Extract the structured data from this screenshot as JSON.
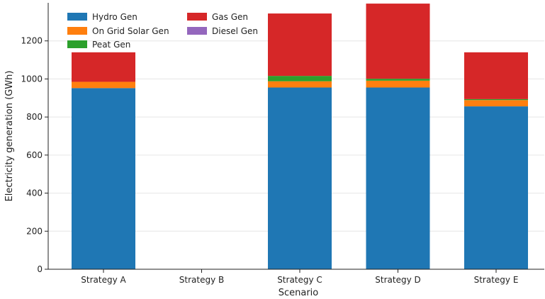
{
  "chart_data": {
    "type": "bar",
    "stacked": true,
    "title": "",
    "xlabel": "Scenario",
    "ylabel": "Electricity generation (GWh)",
    "ylim": [
      0,
      1400
    ],
    "yticks": [
      0,
      200,
      400,
      600,
      800,
      1000,
      1200
    ],
    "grid": true,
    "legend_position": "top-left",
    "categories": [
      "Strategy A",
      "Strategy B",
      "Strategy C",
      "Strategy D",
      "Strategy E"
    ],
    "series": [
      {
        "name": "Hydro Gen",
        "color": "#1f77b4",
        "values": [
          952,
          0,
          955,
          955,
          856
        ]
      },
      {
        "name": "On Grid Solar Gen",
        "color": "#ff7f0e",
        "values": [
          33,
          0,
          33,
          36,
          33
        ]
      },
      {
        "name": "Peat Gen",
        "color": "#2ca02c",
        "values": [
          0,
          0,
          28,
          10,
          5
        ]
      },
      {
        "name": "Gas Gen",
        "color": "#d62728",
        "values": [
          155,
          0,
          328,
          395,
          246
        ]
      },
      {
        "name": "Diesel Gen",
        "color": "#9467bd",
        "values": [
          0,
          0,
          0,
          0,
          0
        ]
      }
    ]
  }
}
